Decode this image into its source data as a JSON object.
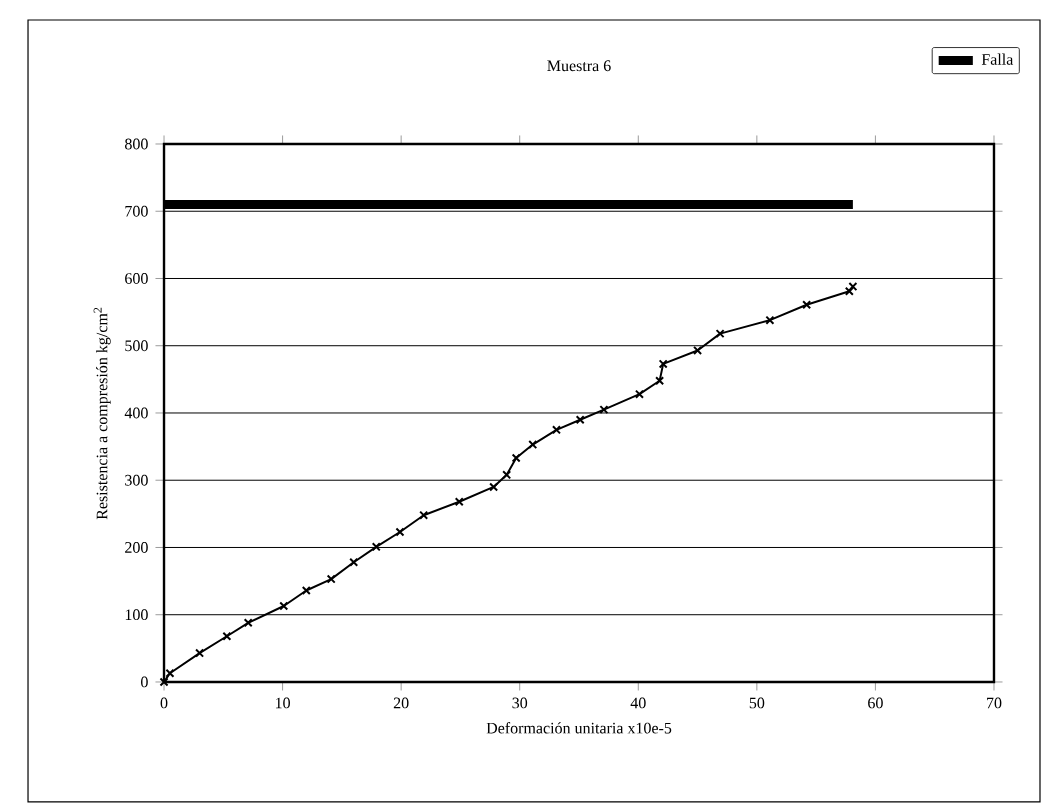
{
  "chart_data": {
    "type": "line",
    "title": "Muestra 6",
    "xlabel": "Deformación unitaria  x10e-5",
    "ylabel": "Resistencia a compresión kg/cm$^{2}$",
    "xlim": [
      0,
      70
    ],
    "ylim": [
      0,
      800
    ],
    "xticks": [
      0,
      10,
      20,
      30,
      40,
      50,
      60,
      70
    ],
    "yticks": [
      0,
      100,
      200,
      300,
      400,
      500,
      600,
      700,
      800
    ],
    "grid": "y",
    "legend": "top right",
    "series": [
      {
        "color": "#000000",
        "marker": "cross",
        "x": [
          0,
          0.5,
          3.0,
          5.3,
          7.1,
          10.1,
          12.0,
          14.1,
          16.0,
          17.9,
          19.9,
          21.9,
          24.9,
          27.8,
          28.9,
          29.7,
          31.1,
          33.1,
          35.1,
          37.1,
          40.1,
          41.8,
          42.1,
          45.0,
          46.9,
          51.1,
          54.2,
          57.8,
          58.1
        ],
        "values": [
          0,
          13,
          43,
          68,
          88,
          113,
          136,
          153,
          178,
          201,
          223,
          248,
          268,
          290,
          308,
          333,
          353,
          375,
          390,
          405,
          428,
          448,
          473,
          493,
          518,
          538,
          561,
          581,
          588
        ]
      },
      {
        "name": "Falla",
        "color": "#000000",
        "marker": "none",
        "x": [
          0,
          58.1
        ],
        "values": [
          710,
          710
        ]
      }
    ]
  }
}
